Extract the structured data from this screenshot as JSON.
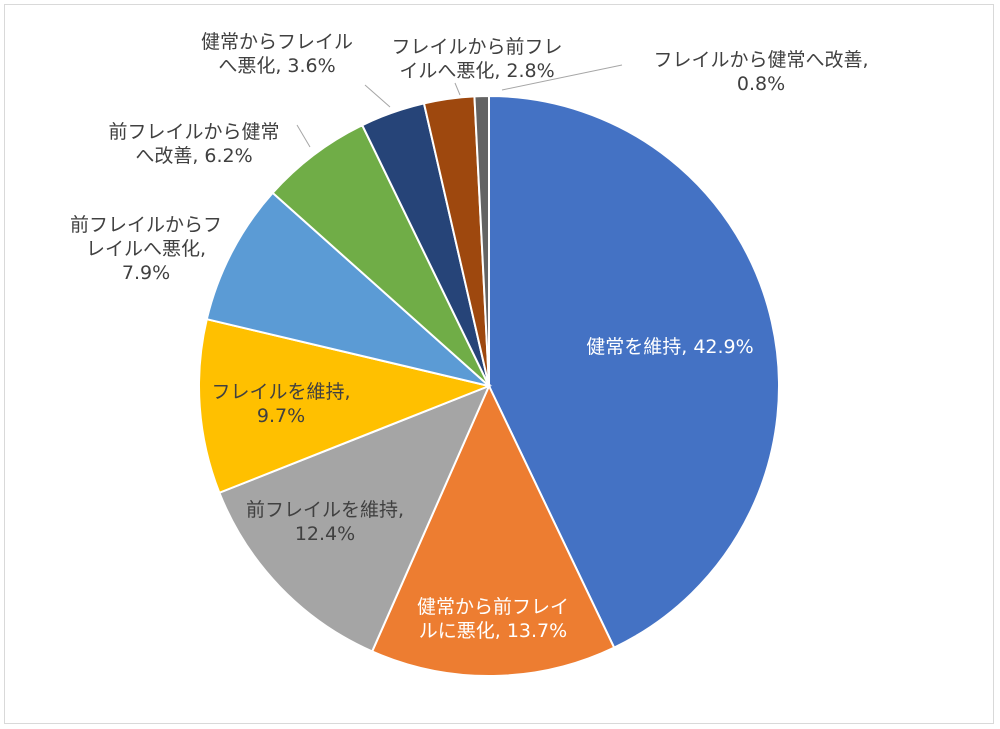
{
  "chart_data": {
    "type": "pie",
    "title": "",
    "legend": "none",
    "slices": [
      {
        "name": "健常を維持",
        "value": 42.9,
        "label": [
          "健常を維持, 42.9%"
        ],
        "color": "#4472c4",
        "label_color": "#ffffff"
      },
      {
        "name": "健常から前フレイルに悪化",
        "value": 13.7,
        "label": [
          "健常から前フレイ",
          "ルに悪化, 13.7%"
        ],
        "color": "#ed7d31",
        "label_color": "#ffffff"
      },
      {
        "name": "前フレイルを維持",
        "value": 12.4,
        "label": [
          "前フレイルを維持,",
          "12.4%"
        ],
        "color": "#a5a5a5",
        "label_color": "#404040"
      },
      {
        "name": "フレイルを維持",
        "value": 9.7,
        "label": [
          "フレイルを維持,",
          "9.7%"
        ],
        "color": "#ffc000",
        "label_color": "#404040"
      },
      {
        "name": "前フレイルからフレイルへ悪化",
        "value": 7.9,
        "label": [
          "前フレイルからフ",
          "レイルへ悪化,",
          "7.9%"
        ],
        "color": "#5b9bd5",
        "label_color": "#404040"
      },
      {
        "name": "前フレイルから健常へ改善",
        "value": 6.2,
        "label": [
          "前フレイルから健常",
          "へ改善, 6.2%"
        ],
        "color": "#70ad47",
        "label_color": "#404040"
      },
      {
        "name": "健常からフレイルへ悪化",
        "value": 3.6,
        "label": [
          "健常からフレイル",
          "へ悪化, 3.6%"
        ],
        "color": "#264478",
        "label_color": "#404040"
      },
      {
        "name": "フレイルから前フレイルへ悪化",
        "value": 2.8,
        "label": [
          "フレイルから前フレ",
          "イルへ悪化, 2.8%"
        ],
        "color": "#9e480e",
        "label_color": "#404040"
      },
      {
        "name": "フレイルから健常へ改善",
        "value": 0.8,
        "label": [
          "フレイルから健常へ改善,",
          "0.8%"
        ],
        "color": "#636363",
        "label_color": "#404040"
      }
    ]
  }
}
